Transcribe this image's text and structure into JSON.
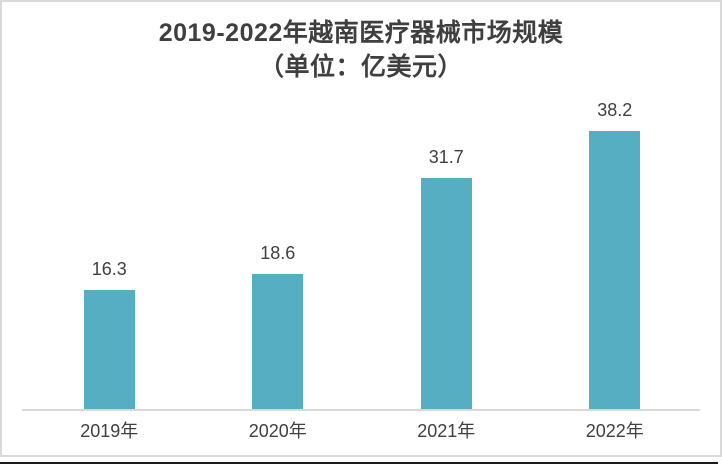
{
  "chart_data": {
    "type": "bar",
    "title_line1": "2019-2022年越南医疗器械市场规模",
    "title_line2": "（单位：亿美元）",
    "title": "2019-2022年越南医疗器械市场规模（单位：亿美元）",
    "categories": [
      "2019年",
      "2020年",
      "2021年",
      "2022年"
    ],
    "values": [
      16.3,
      18.6,
      31.7,
      38.2
    ],
    "xlabel": "",
    "ylabel": "",
    "ylim": [
      0,
      44
    ],
    "grid": false,
    "legend": "none",
    "value_labels": "above-bars",
    "bar_color": "#55AEC1",
    "title_color": "#3F3F3F",
    "label_color": "#404040",
    "axis_line_color": "#D9D9D9",
    "frame_border_color": "#D9D9D9",
    "bottom_rule_color": "#1A1A1A"
  }
}
